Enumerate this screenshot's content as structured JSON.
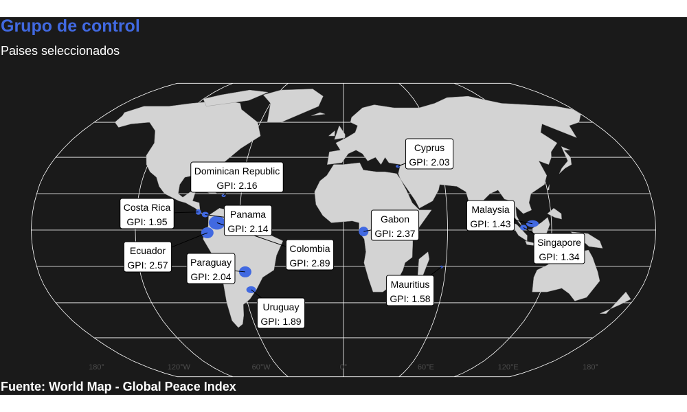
{
  "title": "Grupo de control",
  "subtitle": "Paises seleccionados",
  "caption": "Fuente: World Map - Global Peace Index",
  "colors": {
    "background": "#1a1a1a",
    "land": "#d3d3d3",
    "highlight": "#4169e1",
    "graticule": "#ffffff",
    "title": "#4169e1"
  },
  "map": {
    "projection": "robinson",
    "lon_ticks": [
      "180°",
      "120°W",
      "60°W",
      "0°",
      "60°E",
      "120°E",
      "180°"
    ]
  },
  "countries": [
    {
      "name": "Dominican Republic",
      "gpi_label": "GPI: 2.16",
      "lon": -70.2,
      "lat": 18.9
    },
    {
      "name": "Costa Rica",
      "gpi_label": "GPI: 1.95",
      "lon": -84.0,
      "lat": 9.9
    },
    {
      "name": "Panama",
      "gpi_label": "GPI: 2.14",
      "lon": -80.0,
      "lat": 8.5
    },
    {
      "name": "Ecuador",
      "gpi_label": "GPI: 2.57",
      "lon": -78.5,
      "lat": -1.5
    },
    {
      "name": "Colombia",
      "gpi_label": "GPI: 2.89",
      "lon": -73.0,
      "lat": 4.0
    },
    {
      "name": "Paraguay",
      "gpi_label": "GPI: 2.04",
      "lon": -58.0,
      "lat": -23.0
    },
    {
      "name": "Uruguay",
      "gpi_label": "GPI: 1.89",
      "lon": -56.0,
      "lat": -32.8
    },
    {
      "name": "Cyprus",
      "gpi_label": "GPI: 2.03",
      "lon": 33.2,
      "lat": 35.0
    },
    {
      "name": "Gabon",
      "gpi_label": "GPI: 2.37",
      "lon": 11.6,
      "lat": -0.8
    },
    {
      "name": "Mauritius",
      "gpi_label": "GPI: 1.58",
      "lon": 57.5,
      "lat": -20.3
    },
    {
      "name": "Malaysia",
      "gpi_label": "GPI: 1.43",
      "lon": 109.0,
      "lat": 3.5
    },
    {
      "name": "Singapore",
      "gpi_label": "GPI: 1.34",
      "lon": 103.8,
      "lat": 1.35
    }
  ]
}
